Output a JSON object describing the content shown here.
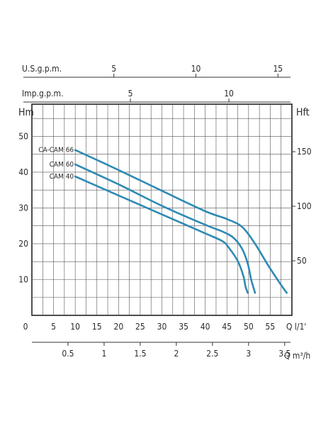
{
  "chart_data": {
    "type": "line",
    "title": "",
    "xlabel": "Q l/1'",
    "ylabel": "Hm",
    "ylabel_right": "Hft",
    "xlim": [
      0,
      60
    ],
    "ylim": [
      0,
      59
    ],
    "grid": true,
    "legend": "inline labels at left end of curves",
    "line_color": "#2e8ab4",
    "axis_labels": {
      "usgpm": "U.S.g.p.m.",
      "impgpm": "Imp.g.p.m.",
      "hm": "Hm",
      "hft": "Hft",
      "q_lmin": "Q  l/1'",
      "q_m3h": "Q  m³/h"
    },
    "ticks": {
      "usgpm": [
        "5",
        "10",
        "15"
      ],
      "usgpm_values": [
        5,
        10,
        15
      ],
      "impgpm": [
        "5",
        "10"
      ],
      "impgpm_values": [
        5,
        10
      ],
      "hm": [
        "10",
        "20",
        "30",
        "40",
        "50"
      ],
      "hm_values": [
        10,
        20,
        30,
        40,
        50
      ],
      "hft": [
        "50",
        "100",
        "150"
      ],
      "hft_values": [
        50,
        100,
        150
      ],
      "q_lmin": [
        "0",
        "5",
        "10",
        "15",
        "20",
        "25",
        "30",
        "35",
        "40",
        "45",
        "50",
        "55"
      ],
      "q_lmin_values": [
        0,
        5,
        10,
        15,
        20,
        25,
        30,
        35,
        40,
        45,
        50,
        55
      ],
      "q_m3h": [
        "0.5",
        "1",
        "1.5",
        "2",
        "2.5",
        "3",
        "3.5"
      ],
      "q_m3h_values": [
        0.5,
        1,
        1.5,
        2,
        2.5,
        3,
        3.5
      ]
    },
    "series": [
      {
        "name": "CA-CAM 66",
        "points": [
          [
            10,
            46.2
          ],
          [
            20,
            40.6
          ],
          [
            30,
            34.8
          ],
          [
            40,
            29.1
          ],
          [
            45,
            26.9
          ],
          [
            48.5,
            24.7
          ],
          [
            51.5,
            20.0
          ],
          [
            54.5,
            14.0
          ],
          [
            57.5,
            8.5
          ],
          [
            58.8,
            6.3
          ]
        ]
      },
      {
        "name": "CAM 60",
        "points": [
          [
            10,
            42.2
          ],
          [
            20,
            36.6
          ],
          [
            30,
            30.6
          ],
          [
            40,
            25.3
          ],
          [
            44,
            23.4
          ],
          [
            46.5,
            21.7
          ],
          [
            48.5,
            18.6
          ],
          [
            49.8,
            14.5
          ],
          [
            50.6,
            10.0
          ],
          [
            51.5,
            6.3
          ]
        ]
      },
      {
        "name": "CAM 40",
        "points": [
          [
            10,
            38.8
          ],
          [
            20,
            33.5
          ],
          [
            30,
            28.2
          ],
          [
            40,
            22.9
          ],
          [
            44,
            20.7
          ],
          [
            45.5,
            18.8
          ],
          [
            47.5,
            15.2
          ],
          [
            48.8,
            11.0
          ],
          [
            49.3,
            8.0
          ],
          [
            49.8,
            6.3
          ]
        ]
      }
    ]
  }
}
